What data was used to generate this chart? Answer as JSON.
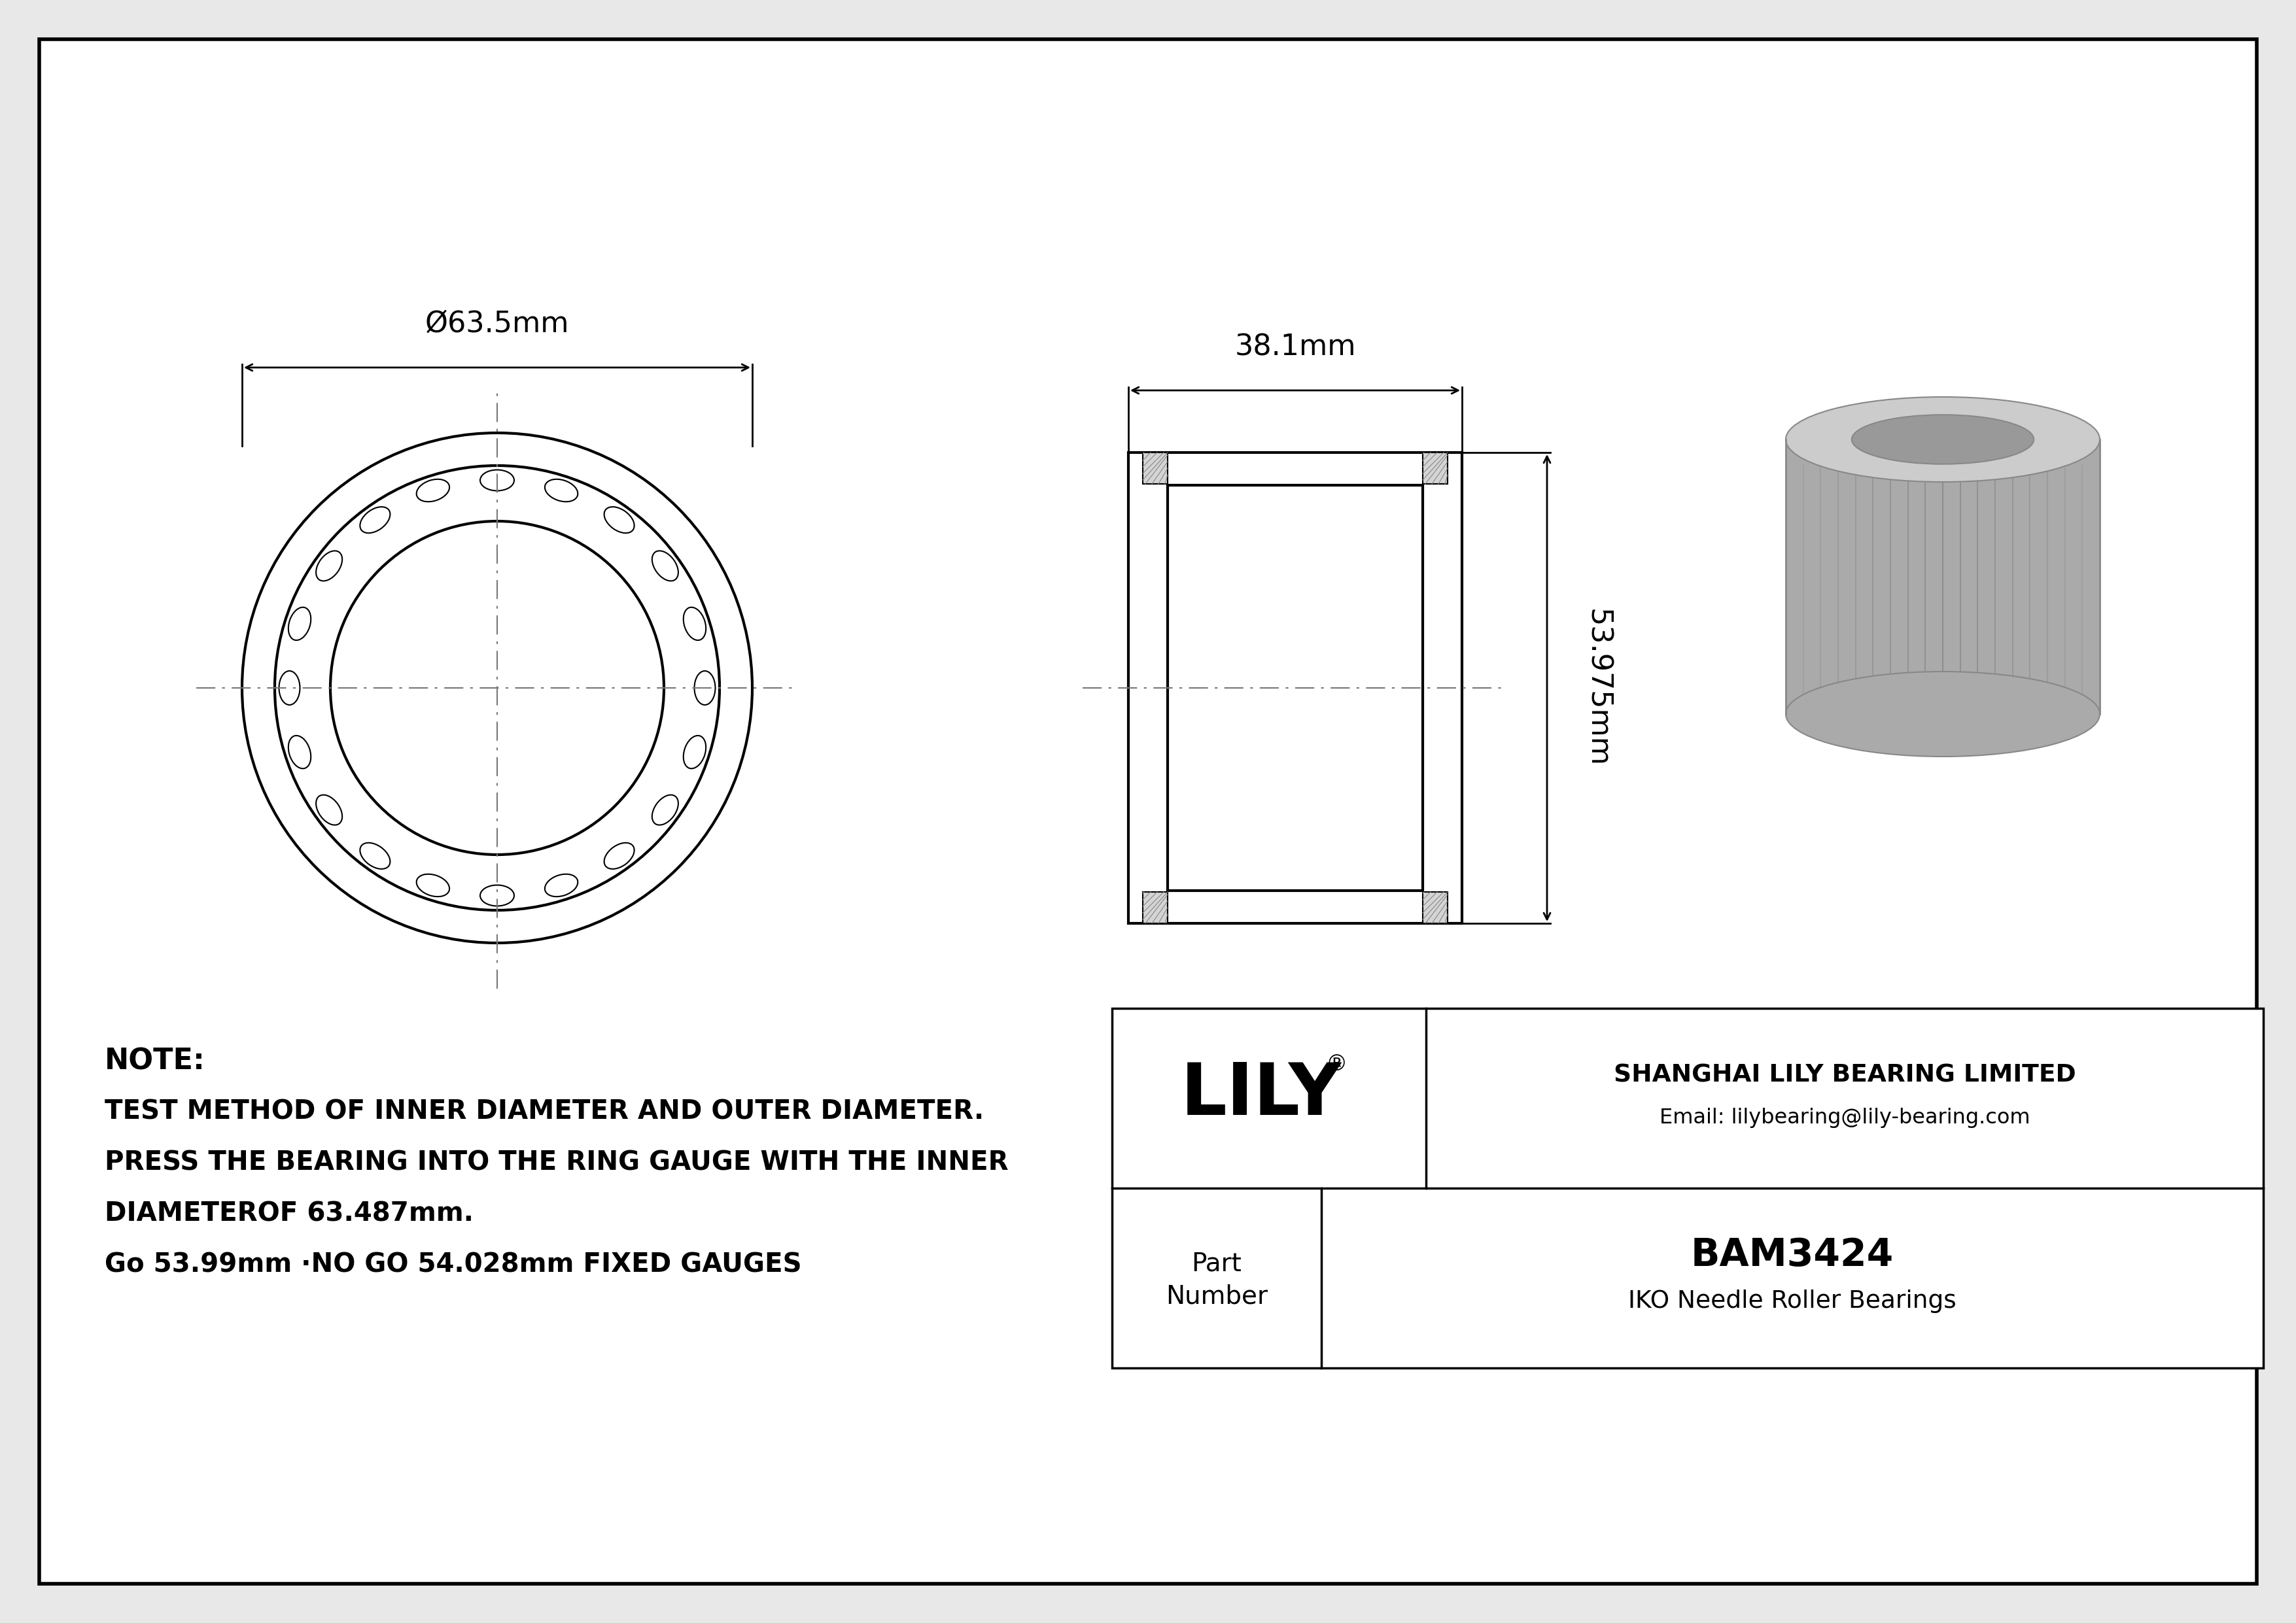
{
  "bg_color": "#e8e8e8",
  "line_color": "#000000",
  "white": "#ffffff",
  "note_line1": "NOTE:",
  "note_line2": "TEST METHOD OF INNER DIAMETER AND OUTER DIAMETER.",
  "note_line3": "PRESS THE BEARING INTO THE RING GAUGE WITH THE INNER",
  "note_line4": "DIAMETEROF 63.487mm.",
  "note_line5": "Go 53.99mm ·NO GO 54.028mm FIXED GAUGES",
  "dim_od": "Ø63.5mm",
  "dim_width": "38.1mm",
  "dim_length": "53.975mm",
  "company_name": "SHANGHAI LILY BEARING LIMITED",
  "company_email": "Email: lilybearing@lily-bearing.com",
  "logo_text": "LILY",
  "logo_reg": "®",
  "part_number": "BAM3424",
  "part_type": "IKO Needle Roller Bearings",
  "hatch_color": "#888888",
  "dim_color": "#000000",
  "center_line_color": "#777777",
  "gray_3d": "#aaaaaa",
  "gray_3d_top": "#cccccc",
  "gray_3d_dark": "#888888"
}
